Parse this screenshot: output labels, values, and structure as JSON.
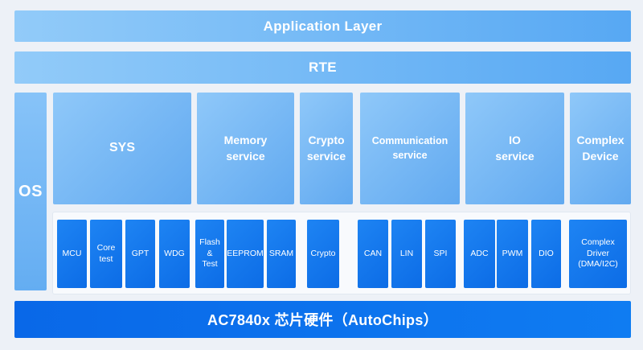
{
  "colors": {
    "background": "#edf1f7",
    "layer_bar_gradient_start": "#92cbf9",
    "layer_bar_gradient_end": "#57a8f3",
    "service_box_gradient_start": "#8fc8f9",
    "service_box_gradient_end": "#61a9f0",
    "driver_box_gradient_start": "#1e84f3",
    "driver_box_gradient_end": "#0c6ce6",
    "hardware_bar_blue": "#0a6ff0",
    "driver_container_bg": "#f8fafd",
    "text": "#ffffff"
  },
  "layers": {
    "application": "Application Layer",
    "rte": "RTE",
    "os": "OS",
    "hardware": "AC7840x 芯片硬件（AutoChips）"
  },
  "services": [
    {
      "label": "SYS"
    },
    {
      "label": "Memory\nservice"
    },
    {
      "label": "Crypto\nservice"
    },
    {
      "label": "Communication\nservice"
    },
    {
      "label": "IO\nservice"
    },
    {
      "label": "Complex\nDevice"
    }
  ],
  "drivers": [
    {
      "label": "MCU"
    },
    {
      "label": "Core\ntest"
    },
    {
      "label": "GPT"
    },
    {
      "label": "WDG"
    },
    {
      "label": "Flash\n&\nTest"
    },
    {
      "label": "EEPROM"
    },
    {
      "label": "SRAM"
    },
    {
      "label": "Crypto"
    },
    {
      "label": "CAN"
    },
    {
      "label": "LIN"
    },
    {
      "label": "SPI"
    },
    {
      "label": "ADC"
    },
    {
      "label": "PWM"
    },
    {
      "label": "DIO"
    },
    {
      "label": "Complex\nDriver\n(DMA/I2C)"
    }
  ]
}
